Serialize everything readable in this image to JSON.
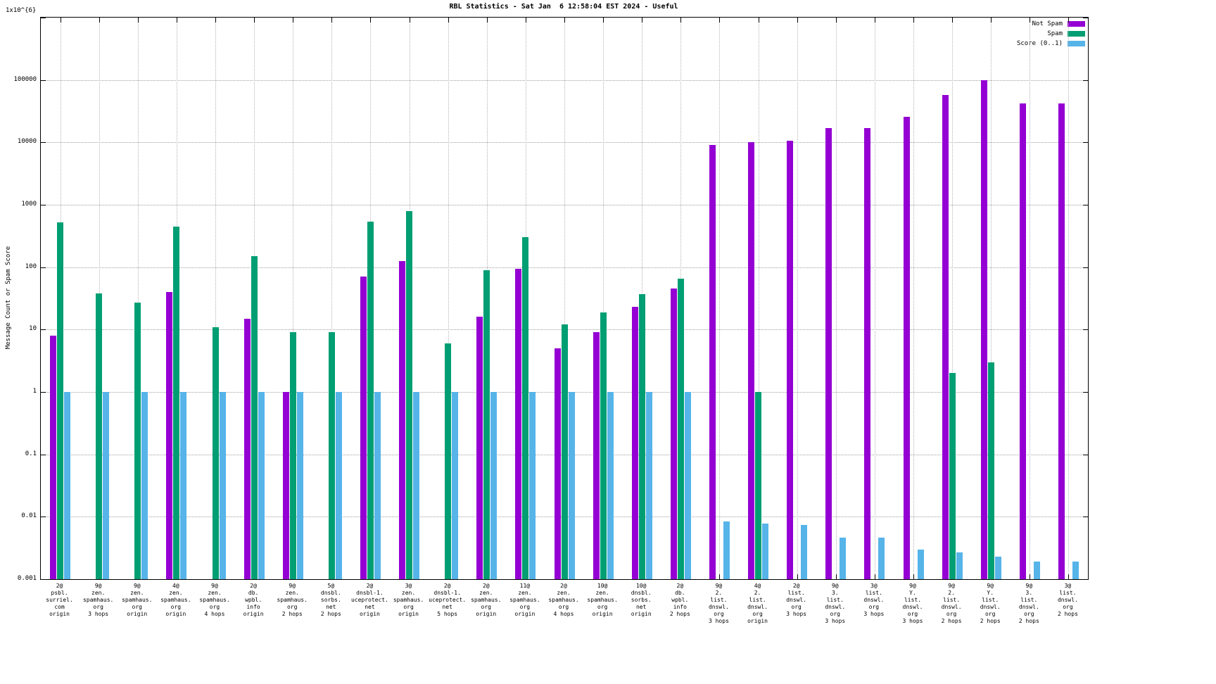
{
  "title": "RBL Statistics - Sat Jan  6 12:58:04 EST 2024 - Useful",
  "ylabel": "Message Count or Spam Score",
  "top_axis_label": "1x10^{6}",
  "legend": [
    {
      "label": "Not Spam",
      "color": "#9400d3"
    },
    {
      "label": "Spam",
      "color": "#009e73"
    },
    {
      "label": "Score (0..1)",
      "color": "#56b4e9"
    }
  ],
  "chart_data": {
    "type": "bar",
    "y_scale": "log",
    "ylim": [
      0.001,
      1000000
    ],
    "grid": true,
    "legend_position": "top-right",
    "y_ticks": [
      "100000",
      "10000",
      "1000",
      "100",
      "10",
      "1",
      "0.1",
      "0.01",
      "0.001"
    ],
    "categories": [
      [
        "2@",
        "psbl.",
        "surriel.",
        "com",
        "origin"
      ],
      [
        "9@",
        "zen.",
        "spamhaus.",
        "org",
        "3 hops"
      ],
      [
        "9@",
        "zen.",
        "spamhaus.",
        "org",
        "origin"
      ],
      [
        "4@",
        "zen.",
        "spamhaus.",
        "org",
        "origin"
      ],
      [
        "9@",
        "zen.",
        "spamhaus.",
        "org",
        "4 hops"
      ],
      [
        "2@",
        "db.",
        "wpbl.",
        "info",
        "origin"
      ],
      [
        "9@",
        "zen.",
        "spamhaus.",
        "org",
        "2 hops"
      ],
      [
        "5@",
        "dnsbl.",
        "sorbs.",
        "net",
        "2 hops"
      ],
      [
        "2@",
        "dnsbl-1.",
        "uceprotect.",
        "net",
        "origin"
      ],
      [
        "3@",
        "zen.",
        "spamhaus.",
        "org",
        "origin"
      ],
      [
        "2@",
        "dnsbl-1.",
        "uceprotect.",
        "net",
        "5 hops"
      ],
      [
        "2@",
        "zen.",
        "spamhaus.",
        "org",
        "origin"
      ],
      [
        "11@",
        "zen.",
        "spamhaus.",
        "org",
        "origin"
      ],
      [
        "2@",
        "zen.",
        "spamhaus.",
        "org",
        "4 hops"
      ],
      [
        "10@",
        "zen.",
        "spamhaus.",
        "org",
        "origin"
      ],
      [
        "10@",
        "dnsbl.",
        "sorbs.",
        "net",
        "origin"
      ],
      [
        "2@",
        "db.",
        "wpbl.",
        "info",
        "2 hops"
      ],
      [
        "9@",
        "2.",
        "list.",
        "dnswl.",
        "org",
        "3 hops"
      ],
      [
        "4@",
        "2.",
        "list.",
        "dnswl.",
        "org",
        "origin"
      ],
      [
        "2@",
        "list.",
        "dnswl.",
        "org",
        "3 hops"
      ],
      [
        "9@",
        "3.",
        "list.",
        "dnswl.",
        "org",
        "3 hops"
      ],
      [
        "3@",
        "list.",
        "dnswl.",
        "org",
        "3 hops"
      ],
      [
        "9@",
        "Y.",
        "list.",
        "dnswl.",
        "org",
        "3 hops"
      ],
      [
        "9@",
        "2.",
        "list.",
        "dnswl.",
        "org",
        "2 hops"
      ],
      [
        "9@",
        "Y.",
        "list.",
        "dnswl.",
        "org",
        "2 hops"
      ],
      [
        "9@",
        "3.",
        "list.",
        "dnswl.",
        "org",
        "2 hops"
      ],
      [
        "3@",
        "list.",
        "dnswl.",
        "org",
        "2 hops"
      ]
    ],
    "series": [
      {
        "name": "Not Spam",
        "color": "#9400d3",
        "values": [
          8,
          null,
          null,
          40,
          null,
          15,
          1,
          null,
          70,
          125,
          null,
          16,
          95,
          5,
          9,
          23,
          45,
          9000,
          10000,
          10500,
          17000,
          17000,
          26000,
          57000,
          100000,
          42000,
          42000
        ]
      },
      {
        "name": "Spam",
        "color": "#009e73",
        "values": [
          520,
          38,
          27,
          450,
          11,
          150,
          9,
          9,
          530,
          800,
          6,
          90,
          300,
          12,
          19,
          37,
          65,
          null,
          1,
          null,
          null,
          null,
          null,
          2,
          3,
          null,
          null
        ]
      },
      {
        "name": "Score (0..1)",
        "color": "#56b4e9",
        "values": [
          1,
          1,
          1,
          1,
          1,
          1,
          1,
          1,
          1,
          1,
          1,
          1,
          1,
          1,
          1,
          1,
          1,
          0.0085,
          0.0077,
          0.0073,
          0.0046,
          0.0046,
          0.003,
          0.0027,
          0.0023,
          0.0019,
          0.0019
        ]
      }
    ]
  }
}
